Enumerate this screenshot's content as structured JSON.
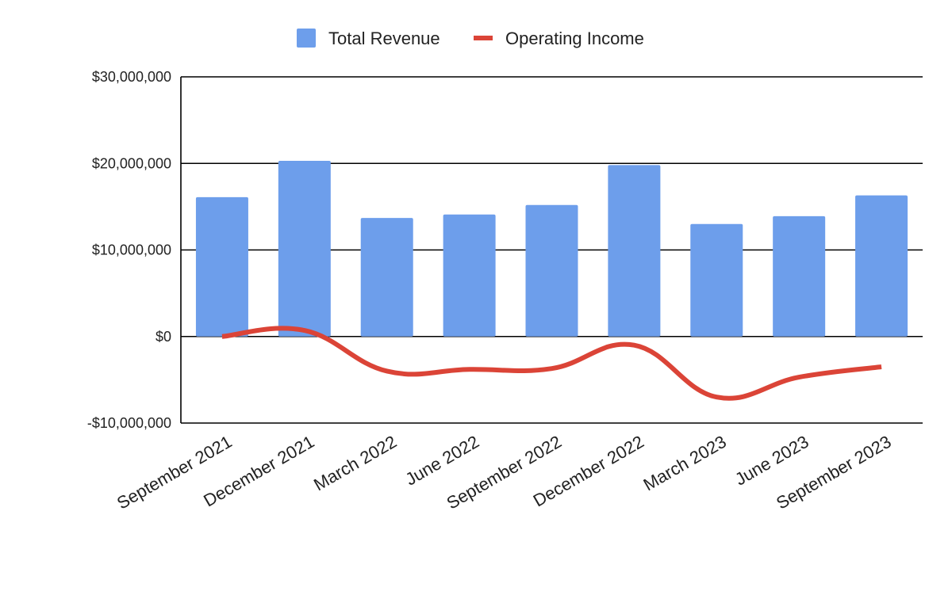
{
  "chart_data": {
    "type": "bar",
    "categories": [
      "September 2021",
      "December 2021",
      "March 2022",
      "June 2022",
      "September 2022",
      "December 2022",
      "March 2023",
      "June 2023",
      "September 2023"
    ],
    "series": [
      {
        "name": "Total Revenue",
        "type": "bar",
        "color": "#6d9eeb",
        "values": [
          16100000,
          20300000,
          13700000,
          14100000,
          15200000,
          19800000,
          13000000,
          13900000,
          16300000
        ]
      },
      {
        "name": "Operating Income",
        "type": "line",
        "smooth": true,
        "color": "#db4437",
        "values": [
          0,
          700000,
          -4000000,
          -3800000,
          -3700000,
          -1000000,
          -7000000,
          -4700000,
          -3500000
        ]
      }
    ],
    "ylim": [
      -10000000,
      30000000
    ],
    "yticks": [
      -10000000,
      0,
      10000000,
      20000000,
      30000000
    ],
    "ytick_labels": [
      "-$10,000,000",
      "$0",
      "$10,000,000",
      "$20,000,000",
      "$30,000,000"
    ],
    "grid": true,
    "legend_position": "top-center"
  }
}
